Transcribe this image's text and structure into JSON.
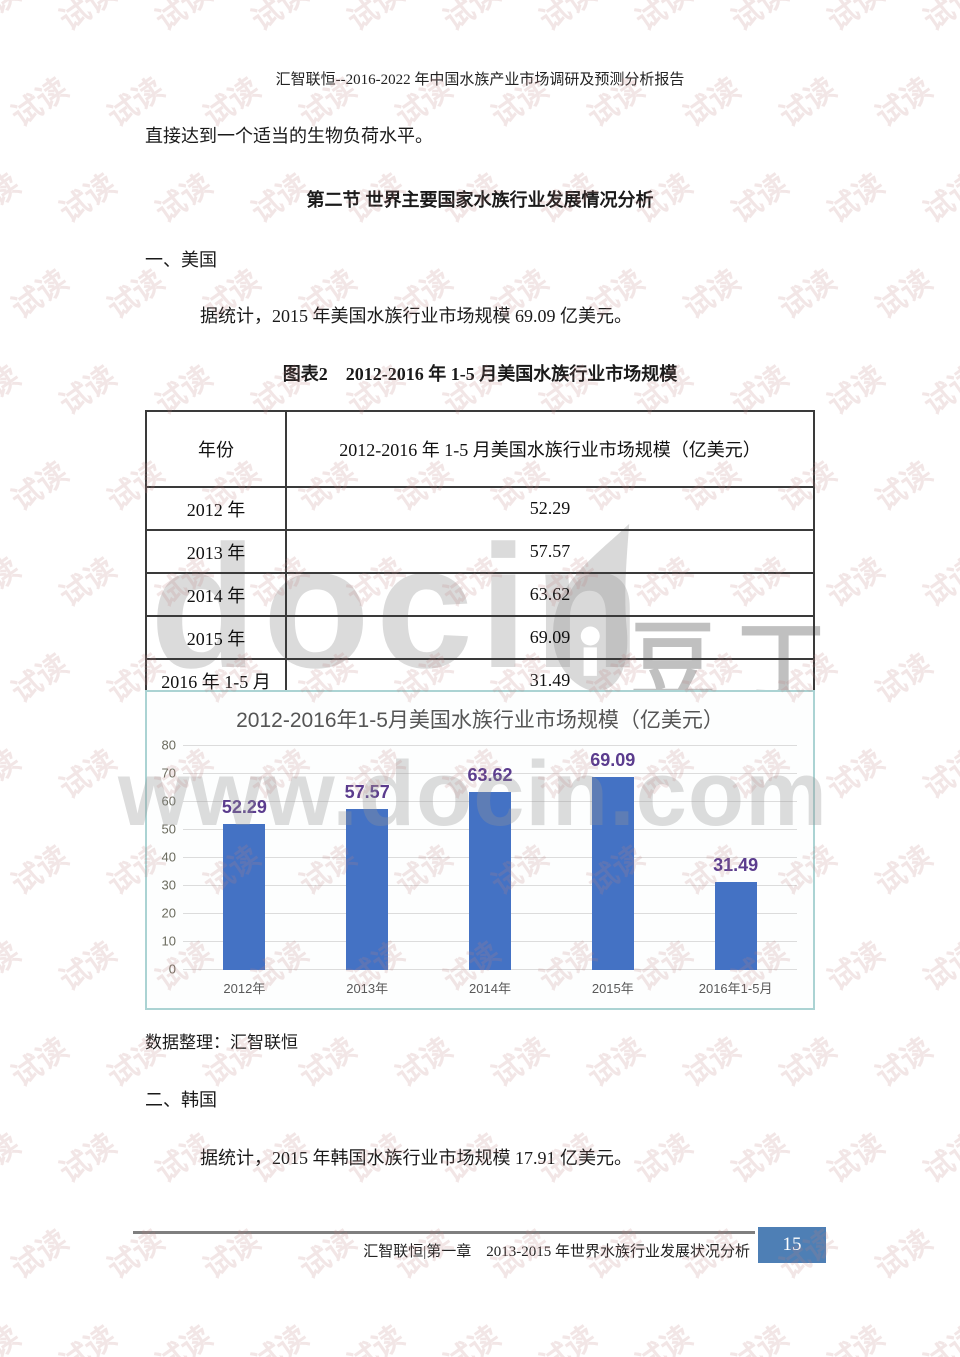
{
  "page": {
    "header_title": "汇智联恒--2016-2022 年中国水族产业市场调研及预测分析报告",
    "paragraph1": "直接达到一个适当的生物负荷水平。",
    "section_heading": "第二节 世界主要国家水族行业发展情况分析",
    "subsection_us": "一、美国",
    "para_us": "据统计，2015 年美国水族行业市场规模 69.09 亿美元。",
    "figure_caption": "图表2　2012-2016 年 1-5 月美国水族行业市场规模",
    "source_note": "数据整理：汇智联恒",
    "subsection_kr": "二、韩国",
    "para_kr": "据统计，2015 年韩国水族行业市场规模 17.91 亿美元。",
    "footer_text": "汇智联恒|第一章　2013-2015 年世界水族行业发展状况分析",
    "page_number": "15"
  },
  "watermarks": {
    "tile_text": "试读",
    "docin_text": "docin",
    "douding_text": "豆丁",
    "site_text": "www.docin.com"
  },
  "table": {
    "col_headers": [
      "年份",
      "2012-2016 年 1-5 月美国水族行业市场规模（亿美元）"
    ],
    "rows": [
      [
        "2012 年",
        "52.29"
      ],
      [
        "2013 年",
        "57.57"
      ],
      [
        "2014 年",
        "63.62"
      ],
      [
        "2015 年",
        "69.09"
      ],
      [
        "2016 年 1-5 月",
        "31.49"
      ]
    ]
  },
  "chart_data": {
    "type": "bar",
    "title": "2012-2016年1-5月美国水族行业市场规模（亿美元）",
    "categories": [
      "2012年",
      "2013年",
      "2014年",
      "2015年",
      "2016年1-5月"
    ],
    "values": [
      52.29,
      57.57,
      63.62,
      69.09,
      31.49
    ],
    "xlabel": "",
    "ylabel": "",
    "ylim": [
      0,
      80
    ],
    "ytick_step": 10,
    "grid": true,
    "legend": false,
    "bar_color": "#4472c4",
    "label_color": "#5b3c8e"
  },
  "colors": {
    "accent_blue": "#4472c4",
    "page_box_blue": "#4e7fb5",
    "chart_border": "#abd3d3",
    "watermark_pink": "#bc8484"
  }
}
